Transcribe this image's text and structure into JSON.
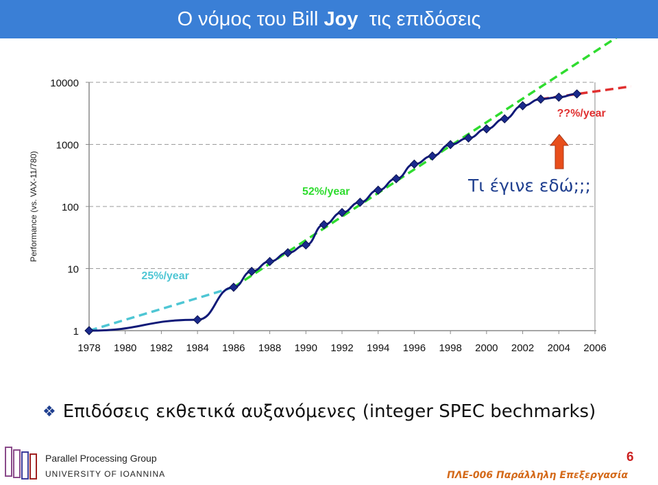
{
  "title": {
    "part1": "Ο νόμος του Bill ",
    "part2": "Joy",
    "part3": "  τις επιδόσεις"
  },
  "colors": {
    "title_bg": "#3a7fd6",
    "main_line": "#101a78",
    "marker": "#1a2a8c",
    "trend_25": "#4ec6d4",
    "trend_52": "#2fdc2f",
    "trend_unknown": "#e03030",
    "arrow": "#e84e1b"
  },
  "chart_data": {
    "type": "line",
    "ylabel": "Performance (vs. VAX-11/780)",
    "xlabel": "",
    "yscale": "log",
    "ylim": [
      1,
      10000
    ],
    "xlim": [
      1978,
      2006
    ],
    "x_ticks": [
      "1978",
      "1980",
      "1982",
      "1984",
      "1986",
      "1988",
      "1990",
      "1992",
      "1994",
      "1996",
      "1998",
      "2000",
      "2002",
      "2004",
      "2006"
    ],
    "y_ticks": [
      "1",
      "10",
      "100",
      "1000",
      "10000"
    ],
    "grid": "horizontal-dashed",
    "series": [
      {
        "values_x": [
          1978,
          1984,
          1986,
          1987,
          1988,
          1989,
          1990,
          1991,
          1992,
          1993,
          1994,
          1995,
          1996,
          1997,
          1998,
          1999,
          2000,
          2001,
          2002,
          2003,
          2004,
          2005
        ],
        "values_y": [
          1,
          1.5,
          5,
          9,
          13,
          18,
          24,
          51,
          80,
          117,
          183,
          280,
          481,
          649,
          993,
          1267,
          1779,
          2584,
          4195,
          5364,
          5764,
          6505
        ]
      }
    ],
    "trend_lines": [
      {
        "label": "25%/year",
        "x": [
          1978,
          1986
        ],
        "y": [
          1,
          5
        ]
      },
      {
        "label": "52%/year",
        "x": [
          1986,
          2008
        ],
        "y": [
          5,
          75000
        ]
      },
      {
        "label": "??%/year",
        "x": [
          2003,
          2008
        ],
        "y": [
          5364,
          8600
        ]
      }
    ],
    "annotation": "Τι έγινε εδώ;;;"
  },
  "bullet": {
    "icon": "diamond-bullet-icon",
    "text": "Επιδόσεις εκθετικά αυξανόμενες (integer SPEC bechmarks)"
  },
  "footer": {
    "group_name": "Parallel Processing Group",
    "university": "UNIVERSITY OF IOANNINA",
    "page_number": "6",
    "course": "ΠΛΕ-006  Παράλληλη Επεξεργασία"
  }
}
